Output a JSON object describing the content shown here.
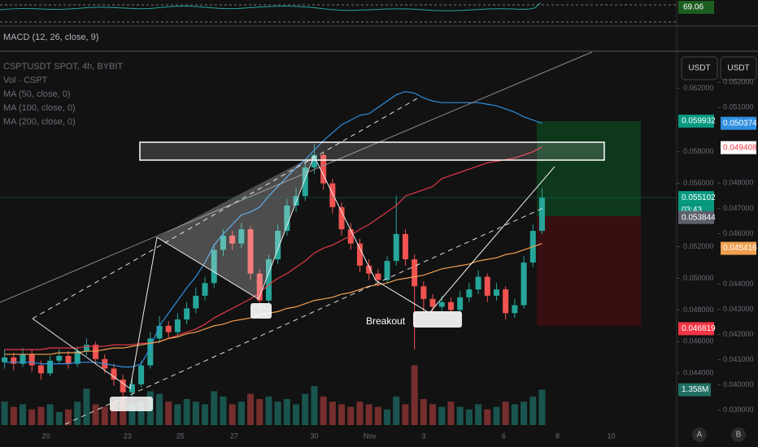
{
  "chart_data": {
    "type": "candlestick",
    "title": "CSPTUSDT SPOT, 4h, BYBIT",
    "volume_label": "Vol · CSPT",
    "rsi_value": 69.06,
    "macd_label": "MACD (12, 26, close, 9)",
    "annotation": "Breakout",
    "y_unit": "USDT",
    "y2_unit": "USDT",
    "countdown": "03:43",
    "scale_buttons": [
      "A",
      "B"
    ],
    "open": [
      0.0447,
      0.045,
      0.0446,
      0.0452,
      0.0445,
      0.044,
      0.0448,
      0.0451,
      0.0446,
      0.0454,
      0.0458,
      0.0449,
      0.0443,
      0.0436,
      0.0428,
      0.0433,
      0.0445,
      0.0462,
      0.047,
      0.0466,
      0.0474,
      0.0481,
      0.0489,
      0.0497,
      0.0518,
      0.0527,
      0.0522,
      0.0531,
      0.0503,
      0.0486,
      0.0512,
      0.053,
      0.0546,
      0.0552,
      0.057,
      0.0578,
      0.056,
      0.0545,
      0.0531,
      0.0522,
      0.0508,
      0.0503,
      0.0499,
      0.0511,
      0.0528,
      0.0512,
      0.0495,
      0.0487,
      0.0482,
      0.0485,
      0.048,
      0.0488,
      0.0493,
      0.0501,
      0.0489,
      0.0493,
      0.0478,
      0.0483,
      0.051,
      0.053
    ],
    "high": [
      0.0455,
      0.0453,
      0.0456,
      0.0455,
      0.0448,
      0.0451,
      0.0455,
      0.0454,
      0.0457,
      0.0462,
      0.046,
      0.0452,
      0.0446,
      0.0439,
      0.0437,
      0.0448,
      0.0466,
      0.0476,
      0.0473,
      0.0478,
      0.0485,
      0.0494,
      0.0501,
      0.0522,
      0.0531,
      0.053,
      0.0535,
      0.0533,
      0.0506,
      0.0515,
      0.0534,
      0.055,
      0.0557,
      0.0574,
      0.0585,
      0.058,
      0.0563,
      0.0548,
      0.0535,
      0.0525,
      0.0512,
      0.0506,
      0.0514,
      0.0552,
      0.0531,
      0.0515,
      0.0498,
      0.049,
      0.0489,
      0.0488,
      0.0492,
      0.0497,
      0.0505,
      0.0503,
      0.0497,
      0.0495,
      0.0487,
      0.0514,
      0.0534,
      0.0557
    ],
    "low": [
      0.0443,
      0.0442,
      0.0444,
      0.0441,
      0.0436,
      0.0438,
      0.0446,
      0.0443,
      0.0444,
      0.0451,
      0.0446,
      0.044,
      0.0432,
      0.0424,
      0.0425,
      0.0431,
      0.0443,
      0.0459,
      0.0462,
      0.0463,
      0.0471,
      0.0478,
      0.0486,
      0.0494,
      0.0514,
      0.0518,
      0.0519,
      0.0499,
      0.0481,
      0.0484,
      0.0509,
      0.0527,
      0.0542,
      0.0549,
      0.0566,
      0.0556,
      0.0541,
      0.0527,
      0.0518,
      0.0504,
      0.0499,
      0.0495,
      0.0497,
      0.0508,
      0.0508,
      0.0455,
      0.0478,
      0.0478,
      0.0479,
      0.0476,
      0.0477,
      0.0485,
      0.049,
      0.0485,
      0.0486,
      0.0474,
      0.0475,
      0.0481,
      0.0507,
      0.0528
    ],
    "close": [
      0.045,
      0.0446,
      0.0452,
      0.0445,
      0.044,
      0.0448,
      0.0451,
      0.0446,
      0.0454,
      0.0458,
      0.0449,
      0.0443,
      0.0436,
      0.0428,
      0.0433,
      0.0445,
      0.0462,
      0.047,
      0.0466,
      0.0474,
      0.0481,
      0.0489,
      0.0497,
      0.0518,
      0.0527,
      0.0522,
      0.0531,
      0.0503,
      0.0486,
      0.0512,
      0.053,
      0.0546,
      0.0552,
      0.057,
      0.0578,
      0.056,
      0.0545,
      0.0531,
      0.0522,
      0.0508,
      0.0503,
      0.0499,
      0.0511,
      0.0528,
      0.0512,
      0.0495,
      0.0487,
      0.0482,
      0.0485,
      0.048,
      0.0488,
      0.0493,
      0.0501,
      0.0489,
      0.0493,
      0.0478,
      0.0483,
      0.051,
      0.053,
      0.0551
    ],
    "volume": [
      900000,
      700000,
      800000,
      600000,
      700000,
      800000,
      500000,
      600000,
      900000,
      1400000,
      800000,
      700000,
      900000,
      1100000,
      800000,
      900000,
      1300000,
      1200000,
      900000,
      800000,
      1000000,
      900000,
      800000,
      1300000,
      1100000,
      800000,
      900000,
      1200000,
      1000000,
      1100000,
      900000,
      1000000,
      800000,
      1200000,
      1500000,
      1100000,
      900000,
      800000,
      700000,
      900000,
      800000,
      700000,
      600000,
      1100000,
      800000,
      2300000,
      1000000,
      800000,
      700000,
      900000,
      700000,
      600000,
      800000,
      600000,
      700000,
      900000,
      800000,
      900000,
      1100000,
      1358000
    ],
    "volume_badge": {
      "value": 1358000,
      "label": "1.358M"
    },
    "series": [
      {
        "name": "MA (50, close, 0)",
        "color": "#2f8fe0",
        "values": [
          0.0447,
          0.0447,
          0.0447,
          0.0447,
          0.0446,
          0.0446,
          0.0446,
          0.0446,
          0.0447,
          0.0447,
          0.0447,
          0.0446,
          0.0445,
          0.0444,
          0.0444,
          0.0446,
          0.0456,
          0.047,
          0.0478,
          0.0486,
          0.0494,
          0.0501,
          0.051,
          0.0521,
          0.0528,
          0.0534,
          0.054,
          0.0542,
          0.0545,
          0.0552,
          0.0558,
          0.0564,
          0.057,
          0.0575,
          0.0581,
          0.0587,
          0.0592,
          0.0597,
          0.06,
          0.0603,
          0.0604,
          0.0608,
          0.0612,
          0.0616,
          0.0618,
          0.0617,
          0.0614,
          0.0612,
          0.0611,
          0.0611,
          0.0611,
          0.0611,
          0.0611,
          0.061,
          0.0609,
          0.0607,
          0.0605,
          0.0602,
          0.06,
          0.0598
        ]
      },
      {
        "name": "MA (100, close, 0)",
        "color": "#e5394a",
        "values": [
          0.0455,
          0.0455,
          0.0455,
          0.0455,
          0.0455,
          0.0456,
          0.0456,
          0.0456,
          0.0456,
          0.0457,
          0.0457,
          0.0457,
          0.0458,
          0.0458,
          0.0458,
          0.0459,
          0.0459,
          0.046,
          0.0462,
          0.0464,
          0.0466,
          0.0468,
          0.0471,
          0.0475,
          0.0478,
          0.0481,
          0.0484,
          0.0487,
          0.0491,
          0.0496,
          0.05,
          0.0503,
          0.0507,
          0.0511,
          0.0516,
          0.0519,
          0.0521,
          0.0524,
          0.0527,
          0.0531,
          0.0534,
          0.0538,
          0.0542,
          0.0546,
          0.0552,
          0.0554,
          0.0556,
          0.0558,
          0.0563,
          0.0565,
          0.0567,
          0.0569,
          0.0571,
          0.0573,
          0.0574,
          0.0575,
          0.0576,
          0.0578,
          0.058,
          0.0583
        ]
      },
      {
        "name": "MA (200, close, 0)",
        "color": "#f0a050",
        "values": [
          0.0452,
          0.0452,
          0.0452,
          0.0452,
          0.0452,
          0.0452,
          0.0453,
          0.0453,
          0.0453,
          0.0454,
          0.0454,
          0.0455,
          0.0456,
          0.0456,
          0.0457,
          0.0458,
          0.0459,
          0.046,
          0.0462,
          0.0463,
          0.0465,
          0.0466,
          0.0468,
          0.047,
          0.0471,
          0.0473,
          0.0474,
          0.0475,
          0.0477,
          0.0478,
          0.0479,
          0.0481,
          0.0482,
          0.0484,
          0.0486,
          0.0487,
          0.0488,
          0.049,
          0.0491,
          0.0493,
          0.0495,
          0.0496,
          0.0497,
          0.0499,
          0.05,
          0.0501,
          0.0502,
          0.0504,
          0.0506,
          0.0507,
          0.0508,
          0.0509,
          0.0511,
          0.0512,
          0.0513,
          0.0515,
          0.0516,
          0.0518,
          0.052,
          0.0522
        ]
      }
    ],
    "up_color": "#26a69a",
    "down_color": "#ef5350",
    "xlim": [
      -0.5,
      73.6
    ],
    "xticks": [
      {
        "value": 4.55,
        "label": "20"
      },
      {
        "value": 13.5,
        "label": "23"
      },
      {
        "value": 19.3,
        "label": "25"
      },
      {
        "value": 25.2,
        "label": "27"
      },
      {
        "value": 34.0,
        "label": "30"
      },
      {
        "value": 40.1,
        "label": "Nov"
      },
      {
        "value": 46.0,
        "label": "3"
      },
      {
        "value": 54.8,
        "label": "6"
      },
      {
        "value": 60.7,
        "label": "8"
      },
      {
        "value": 66.6,
        "label": "10"
      }
    ],
    "ylim": [
      0.0396,
      0.0643
    ],
    "yticks": [
      {
        "value": 0.062,
        "label": "0.062000"
      },
      {
        "value": 0.058,
        "label": "0.058000"
      },
      {
        "value": 0.056,
        "label": "0.056000"
      },
      {
        "value": 0.052,
        "label": "0.052000"
      },
      {
        "value": 0.05,
        "label": "0.050000"
      },
      {
        "value": 0.048,
        "label": "0.048000"
      },
      {
        "value": 0.046,
        "label": "0.046000"
      },
      {
        "value": 0.044,
        "label": "0.044000"
      }
    ],
    "y2lim": [
      0.0377,
      0.0532
    ],
    "y2ticks": [
      {
        "value": 0.052,
        "label": "0.052000"
      },
      {
        "value": 0.051,
        "label": "0.051000"
      },
      {
        "value": 0.048,
        "label": "0.048000"
      },
      {
        "value": 0.047,
        "label": "0.047000"
      },
      {
        "value": 0.046,
        "label": "0.046000"
      },
      {
        "value": 0.044,
        "label": "0.044000"
      },
      {
        "value": 0.043,
        "label": "0.043000"
      },
      {
        "value": 0.042,
        "label": "0.042000"
      },
      {
        "value": 0.041,
        "label": "0.041000"
      },
      {
        "value": 0.04,
        "label": "0.040000"
      },
      {
        "value": 0.039,
        "label": "0.039000"
      }
    ],
    "price_badges": [
      {
        "value": 0.059932,
        "color": "#089981",
        "axis": "y"
      },
      {
        "value": 0.055102,
        "color": "#089981",
        "axis": "y"
      },
      {
        "value": 0.053844,
        "color": "#5d606b",
        "axis": "y"
      },
      {
        "value": 0.046819,
        "color": "#f23645",
        "axis": "y"
      },
      {
        "value": 0.050374,
        "color": "#2f8fe0",
        "axis": "y2"
      },
      {
        "value": 0.049408,
        "color": "#ffffff",
        "axis": "y2"
      },
      {
        "value": 0.045416,
        "color": "#f0a050",
        "axis": "y2"
      }
    ]
  }
}
